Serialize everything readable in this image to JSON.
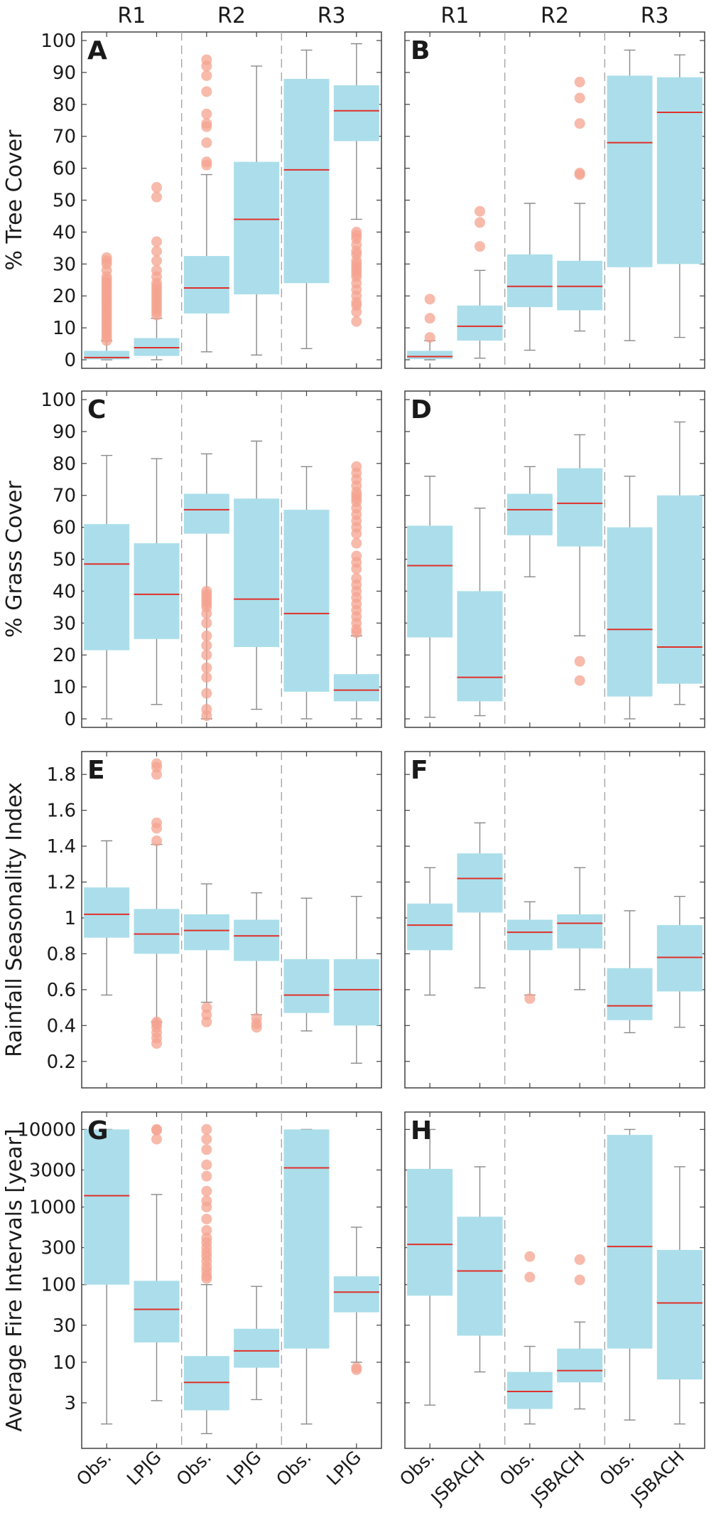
{
  "chart_data": {
    "type": "box",
    "title": "",
    "colors": {
      "box": "#abdeea",
      "median": "#e0302a",
      "outlier": "#f4a38f",
      "whisker": "#8a8a8a",
      "divider": "#a6a6a6",
      "frame": "#404040"
    },
    "regions": [
      "R1",
      "R2",
      "R3"
    ],
    "columns": [
      {
        "model": "LPJG",
        "categories": [
          "Obs.",
          "LPJG",
          "Obs.",
          "LPJG",
          "Obs.",
          "LPJG"
        ]
      },
      {
        "model": "JSBACH",
        "categories": [
          "Obs.",
          "JSBACH",
          "Obs.",
          "JSBACH",
          "Obs.",
          "JSBACH"
        ]
      }
    ],
    "rows": [
      {
        "ylabel": "% Tree Cover",
        "scale": "linear",
        "ylim": [
          0,
          100
        ],
        "ticks": [
          {
            "v": 0,
            "label": "0"
          },
          {
            "v": 10,
            "label": "10"
          },
          {
            "v": 20,
            "label": "20"
          },
          {
            "v": 30,
            "label": "30"
          },
          {
            "v": 40,
            "label": "40"
          },
          {
            "v": 50,
            "label": "50"
          },
          {
            "v": 60,
            "label": "60"
          },
          {
            "v": 70,
            "label": "70"
          },
          {
            "v": 80,
            "label": "80"
          },
          {
            "v": 90,
            "label": "90"
          },
          {
            "v": 100,
            "label": "100"
          }
        ],
        "panels": [
          {
            "letter": "A",
            "boxes": [
              {
                "low": 0,
                "q1": 0.1,
                "median": 0.7,
                "q3": 2.8,
                "high": 6,
                "outliers": [
                  6,
                  7,
                  8,
                  9,
                  10,
                  11,
                  12,
                  13,
                  14,
                  15,
                  16,
                  17,
                  18,
                  19,
                  20,
                  21,
                  22,
                  23,
                  24,
                  25,
                  26,
                  28,
                  30,
                  31,
                  32
                ]
              },
              {
                "low": 0,
                "q1": 1.2,
                "median": 3.8,
                "q3": 6.8,
                "high": 13,
                "outliers": [
                  14,
                  15,
                  16,
                  17,
                  18,
                  19,
                  20,
                  21,
                  22,
                  23,
                  24,
                  26,
                  28,
                  31,
                  34,
                  37,
                  51,
                  54
                ]
              },
              {
                "low": 2.5,
                "q1": 14.5,
                "median": 22.5,
                "q3": 32.5,
                "high": 58,
                "outliers": [
                  61,
                  62,
                  68,
                  73,
                  74,
                  77,
                  84,
                  89,
                  92,
                  94
                ]
              },
              {
                "low": 1.5,
                "q1": 20.5,
                "median": 44,
                "q3": 62,
                "high": 92,
                "outliers": []
              },
              {
                "low": 3.5,
                "q1": 24,
                "median": 59.5,
                "q3": 88,
                "high": 97,
                "outliers": []
              },
              {
                "low": 44,
                "q1": 68.5,
                "median": 78,
                "q3": 86,
                "high": 99,
                "outliers": [
                  12,
                  15,
                  17,
                  18,
                  20,
                  22,
                  24,
                  26,
                  27,
                  28,
                  29,
                  30,
                  31,
                  33,
                  34,
                  36,
                  38,
                  39,
                  40
                ]
              }
            ]
          },
          {
            "letter": "B",
            "boxes": [
              {
                "low": 0,
                "q1": 0.2,
                "median": 1,
                "q3": 2.8,
                "high": 6,
                "outliers": [
                  7,
                  13,
                  19
                ]
              },
              {
                "low": 0.5,
                "q1": 6,
                "median": 10.5,
                "q3": 17,
                "high": 28,
                "outliers": [
                  35.5,
                  43,
                  46.5
                ]
              },
              {
                "low": 3,
                "q1": 16.5,
                "median": 23,
                "q3": 33,
                "high": 49,
                "outliers": []
              },
              {
                "low": 9,
                "q1": 15.5,
                "median": 23,
                "q3": 31,
                "high": 49,
                "outliers": [
                  58,
                  58.5,
                  74,
                  82,
                  87
                ]
              },
              {
                "low": 6,
                "q1": 29,
                "median": 68,
                "q3": 89,
                "high": 97,
                "outliers": []
              },
              {
                "low": 7,
                "q1": 30,
                "median": 77.5,
                "q3": 88.5,
                "high": 95.5,
                "outliers": []
              }
            ]
          }
        ]
      },
      {
        "ylabel": "% Grass Cover",
        "scale": "linear",
        "ylim": [
          0,
          100
        ],
        "ticks": [
          {
            "v": 0,
            "label": "0"
          },
          {
            "v": 10,
            "label": "10"
          },
          {
            "v": 20,
            "label": "20"
          },
          {
            "v": 30,
            "label": "30"
          },
          {
            "v": 40,
            "label": "40"
          },
          {
            "v": 50,
            "label": "50"
          },
          {
            "v": 60,
            "label": "60"
          },
          {
            "v": 70,
            "label": "70"
          },
          {
            "v": 80,
            "label": "80"
          },
          {
            "v": 90,
            "label": "90"
          },
          {
            "v": 100,
            "label": "100"
          }
        ],
        "panels": [
          {
            "letter": "C",
            "boxes": [
              {
                "low": 0,
                "q1": 21.5,
                "median": 48.5,
                "q3": 61,
                "high": 82.5,
                "outliers": []
              },
              {
                "low": 4.5,
                "q1": 25,
                "median": 39,
                "q3": 55,
                "high": 81.5,
                "outliers": []
              },
              {
                "low": 0,
                "q1": 58,
                "median": 65.5,
                "q3": 70.5,
                "high": 83,
                "outliers": [
                  1,
                  3,
                  8,
                  13,
                  16,
                  20,
                  23,
                  26,
                  30,
                  33,
                  35,
                  36,
                  37,
                  38,
                  39,
                  40
                ]
              },
              {
                "low": 3,
                "q1": 22.5,
                "median": 37.5,
                "q3": 69,
                "high": 87,
                "outliers": []
              },
              {
                "low": 0,
                "q1": 8.5,
                "median": 33,
                "q3": 65.5,
                "high": 79,
                "outliers": []
              },
              {
                "low": 0,
                "q1": 5.5,
                "median": 9,
                "q3": 14,
                "high": 26,
                "outliers": [
                  27,
                  28,
                  30,
                  32,
                  34,
                  36,
                  38,
                  40,
                  42,
                  44,
                  47,
                  49,
                  51,
                  55,
                  58,
                  60,
                  62,
                  64,
                  66,
                  68,
                  69,
                  70,
                  71,
                  73,
                  75,
                  77,
                  79
                ]
              }
            ]
          },
          {
            "letter": "D",
            "boxes": [
              {
                "low": 0.5,
                "q1": 25.5,
                "median": 48,
                "q3": 60.5,
                "high": 76,
                "outliers": []
              },
              {
                "low": 1,
                "q1": 5.5,
                "median": 13,
                "q3": 40,
                "high": 66,
                "outliers": []
              },
              {
                "low": 44.5,
                "q1": 57.5,
                "median": 65.5,
                "q3": 70.5,
                "high": 79,
                "outliers": []
              },
              {
                "low": 26,
                "q1": 54,
                "median": 67.5,
                "q3": 78.5,
                "high": 89,
                "outliers": [
                  12,
                  18
                ]
              },
              {
                "low": 0,
                "q1": 7,
                "median": 28,
                "q3": 60,
                "high": 76,
                "outliers": []
              },
              {
                "low": 4.5,
                "q1": 11,
                "median": 22.5,
                "q3": 70,
                "high": 93,
                "outliers": []
              }
            ]
          }
        ]
      },
      {
        "ylabel": "Rainfall Seasonality Index",
        "scale": "linear",
        "ylim": [
          0.1,
          1.88
        ],
        "ticks": [
          {
            "v": 0.2,
            "label": "0.2"
          },
          {
            "v": 0.4,
            "label": "0.4"
          },
          {
            "v": 0.6,
            "label": "0.6"
          },
          {
            "v": 0.8,
            "label": "0.8"
          },
          {
            "v": 1.0,
            "label": "1"
          },
          {
            "v": 1.2,
            "label": "1.2"
          },
          {
            "v": 1.4,
            "label": "1.4"
          },
          {
            "v": 1.6,
            "label": "1.6"
          },
          {
            "v": 1.8,
            "label": "1.8"
          }
        ],
        "panels": [
          {
            "letter": "E",
            "boxes": [
              {
                "low": 0.57,
                "q1": 0.89,
                "median": 1.02,
                "q3": 1.17,
                "high": 1.43,
                "outliers": []
              },
              {
                "low": 0.42,
                "q1": 0.8,
                "median": 0.91,
                "q3": 1.05,
                "high": 1.41,
                "outliers": [
                  0.3,
                  0.33,
                  0.36,
                  0.39,
                  0.41,
                  0.42,
                  1.43,
                  1.5,
                  1.53,
                  1.8,
                  1.84,
                  1.86
                ]
              },
              {
                "low": 0.53,
                "q1": 0.82,
                "median": 0.93,
                "q3": 1.02,
                "high": 1.19,
                "outliers": [
                  0.42,
                  0.46,
                  0.5
                ]
              },
              {
                "low": 0.46,
                "q1": 0.76,
                "median": 0.9,
                "q3": 0.99,
                "high": 1.14,
                "outliers": [
                  0.39,
                  0.41,
                  0.44
                ]
              },
              {
                "low": 0.37,
                "q1": 0.47,
                "median": 0.57,
                "q3": 0.77,
                "high": 1.11,
                "outliers": []
              },
              {
                "low": 0.19,
                "q1": 0.4,
                "median": 0.6,
                "q3": 0.77,
                "high": 1.12,
                "outliers": []
              }
            ]
          },
          {
            "letter": "F",
            "boxes": [
              {
                "low": 0.57,
                "q1": 0.82,
                "median": 0.96,
                "q3": 1.08,
                "high": 1.28,
                "outliers": []
              },
              {
                "low": 0.61,
                "q1": 1.03,
                "median": 1.22,
                "q3": 1.36,
                "high": 1.53,
                "outliers": []
              },
              {
                "low": 0.57,
                "q1": 0.82,
                "median": 0.92,
                "q3": 0.99,
                "high": 1.09,
                "outliers": [
                  0.55
                ]
              },
              {
                "low": 0.6,
                "q1": 0.83,
                "median": 0.97,
                "q3": 1.02,
                "high": 1.28,
                "outliers": []
              },
              {
                "low": 0.36,
                "q1": 0.43,
                "median": 0.51,
                "q3": 0.72,
                "high": 1.04,
                "outliers": []
              },
              {
                "low": 0.39,
                "q1": 0.59,
                "median": 0.78,
                "q3": 0.96,
                "high": 1.12,
                "outliers": []
              }
            ]
          }
        ]
      },
      {
        "ylabel": "Average Fire Intervals [year]",
        "scale": "log",
        "ylim": [
          1,
          13000
        ],
        "ticks": [
          {
            "v": 3,
            "label": "3"
          },
          {
            "v": 10,
            "label": "10"
          },
          {
            "v": 30,
            "label": "30"
          },
          {
            "v": 100,
            "label": "100"
          },
          {
            "v": 300,
            "label": "300"
          },
          {
            "v": 1000,
            "label": "1000"
          },
          {
            "v": 3000,
            "label": "3000"
          },
          {
            "v": 10000,
            "label": "10000"
          }
        ],
        "panels": [
          {
            "letter": "G",
            "boxes": [
              {
                "low": 1.6,
                "q1": 100,
                "median": 1400,
                "q3": 10000,
                "high": 10000,
                "outliers": []
              },
              {
                "low": 3.2,
                "q1": 18,
                "median": 48,
                "q3": 112,
                "high": 1450,
                "outliers": [
                  7500,
                  9800,
                  10000
                ]
              },
              {
                "low": 1.2,
                "q1": 2.4,
                "median": 5.5,
                "q3": 12,
                "high": 100,
                "outliers": [
                  120,
                  130,
                  150,
                  170,
                  200,
                  230,
                  260,
                  300,
                  350,
                  400,
                  500,
                  700,
                  1000,
                  1200,
                  1600,
                  2500,
                  3500,
                  5500,
                  7500,
                  10000
                ]
              },
              {
                "low": 3.3,
                "q1": 8.5,
                "median": 14,
                "q3": 27,
                "high": 95,
                "outliers": []
              },
              {
                "low": 1.6,
                "q1": 15,
                "median": 3200,
                "q3": 10000,
                "high": 10000,
                "outliers": []
              },
              {
                "low": 10,
                "q1": 44,
                "median": 80,
                "q3": 128,
                "high": 550,
                "outliers": [
                  8,
                  8.5
                ]
              }
            ]
          },
          {
            "letter": "H",
            "boxes": [
              {
                "low": 2.8,
                "q1": 72,
                "median": 330,
                "q3": 3100,
                "high": 10000,
                "outliers": []
              },
              {
                "low": 7.5,
                "q1": 22,
                "median": 150,
                "q3": 750,
                "high": 3300,
                "outliers": []
              },
              {
                "low": 1.6,
                "q1": 2.5,
                "median": 4.2,
                "q3": 7.5,
                "high": 16,
                "outliers": [
                  125,
                  230
                ]
              },
              {
                "low": 2.5,
                "q1": 5.5,
                "median": 7.8,
                "q3": 15,
                "high": 33,
                "outliers": [
                  115,
                  210
                ]
              },
              {
                "low": 1.8,
                "q1": 15,
                "median": 310,
                "q3": 8500,
                "high": 10000,
                "outliers": []
              },
              {
                "low": 1.6,
                "q1": 6,
                "median": 58,
                "q3": 280,
                "high": 3300,
                "outliers": []
              }
            ]
          }
        ]
      }
    ]
  }
}
